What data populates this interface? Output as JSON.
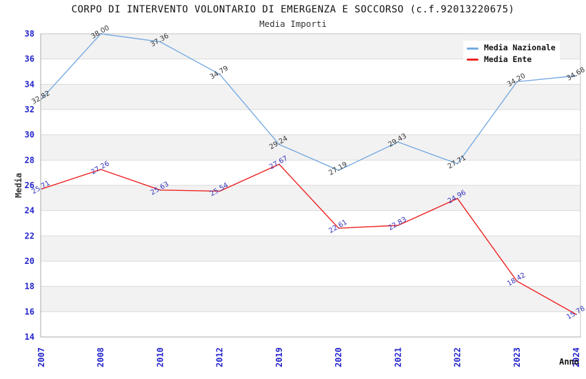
{
  "title": "CORPO DI INTERVENTO VOLONTARIO DI EMERGENZA E SOCCORSO (c.f.92013220675)",
  "subtitle": "Media Importi",
  "legend": {
    "items": [
      {
        "label": "Media Nazionale",
        "color": "#76aae2"
      },
      {
        "label": "Media Ente",
        "color": "#ee2222"
      }
    ]
  },
  "chart_data": {
    "type": "line",
    "title": "CORPO DI INTERVENTO VOLONTARIO DI EMERGENZA E SOCCORSO (c.f.92013220675)",
    "subtitle": "Media Importi",
    "categories": [
      "2007",
      "2008",
      "2010",
      "2012",
      "2019",
      "2020",
      "2021",
      "2022",
      "2023",
      "2024"
    ],
    "series": [
      {
        "name": "Media Nazionale",
        "color": "#76aae2",
        "label_color": "#333333",
        "values": [
          32.82,
          38.0,
          37.36,
          34.79,
          29.24,
          27.19,
          29.43,
          27.71,
          34.2,
          34.68
        ]
      },
      {
        "name": "Media Ente",
        "color": "#ee2222",
        "label_color": "#3434bb",
        "values": [
          25.71,
          27.26,
          25.63,
          25.54,
          27.67,
          22.61,
          22.83,
          24.96,
          18.42,
          15.78
        ]
      }
    ],
    "xlabel": "Anno",
    "ylabel": "Media",
    "ylim": [
      14,
      38
    ],
    "ytick_step": 2,
    "grid": true,
    "legend_position": "top-right",
    "axis_tick_color": "#2323cc",
    "band_color": "#f2f2f2",
    "grid_color": "#dadada",
    "border_color": "#c4c4c4",
    "axis_line_color": "#aaaaaa",
    "data_label_rotation": -30,
    "x_tick_rotation": -90
  }
}
